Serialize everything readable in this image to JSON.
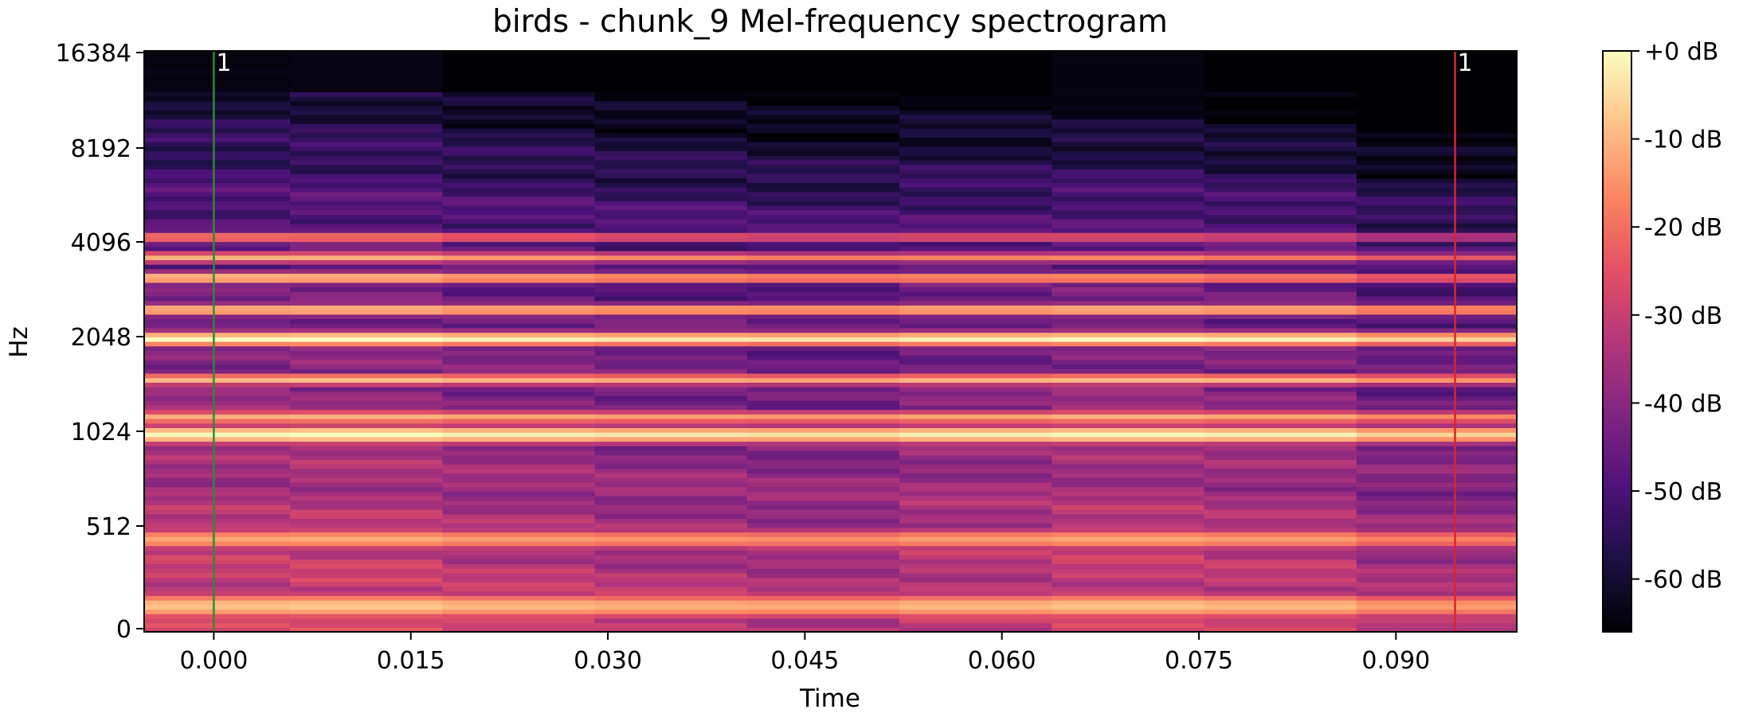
{
  "chart_data": {
    "type": "heatmap",
    "title": "birds - chunk_9 Mel-frequency spectrogram",
    "xlabel": "Time",
    "ylabel": "Hz",
    "x_range": [
      -0.0053,
      0.0992
    ],
    "x_ticks": [
      0.0,
      0.015,
      0.03,
      0.045,
      0.06,
      0.075,
      0.09
    ],
    "x_tick_labels": [
      "0.000",
      "0.015",
      "0.030",
      "0.045",
      "0.060",
      "0.075",
      "0.090"
    ],
    "y_tick_labels": [
      "0",
      "512",
      "1024",
      "2048",
      "4096",
      "8192",
      "16384"
    ],
    "colorbar": {
      "range_db": [
        -66,
        0
      ],
      "ticks_db": [
        0,
        -10,
        -20,
        -30,
        -40,
        -50,
        -60
      ],
      "tick_labels": [
        "+0 dB",
        "-10 dB",
        "-20 dB",
        "-30 dB",
        "-40 dB",
        "-50 dB",
        "-60 dB"
      ],
      "colormap": "magma"
    },
    "frame_columns_start_times": [
      -0.0053,
      0.0058,
      0.0174,
      0.029,
      0.0406,
      0.0522,
      0.0638,
      0.0754,
      0.087
    ],
    "markers": [
      {
        "time": 0.0,
        "label": "1",
        "color": "#2e8b2e"
      },
      {
        "time": 0.0945,
        "label": "1",
        "color": "#d62728"
      }
    ],
    "notes": "Strong harmonic bands near 110, 550, 1024, 1600, 2048, 2600, 3200 Hz; energy fades above 4096 Hz and toward later frames."
  }
}
